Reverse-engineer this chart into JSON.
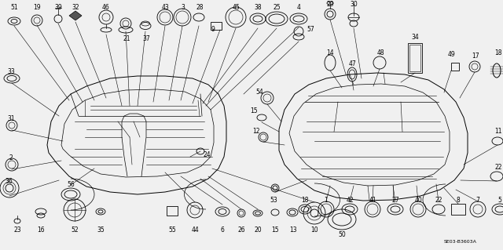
{
  "bg_color": "#f0f0f0",
  "diagram_code": "SE03-B3603A",
  "fig_w": 6.4,
  "fig_h": 3.19,
  "dpi": 100
}
